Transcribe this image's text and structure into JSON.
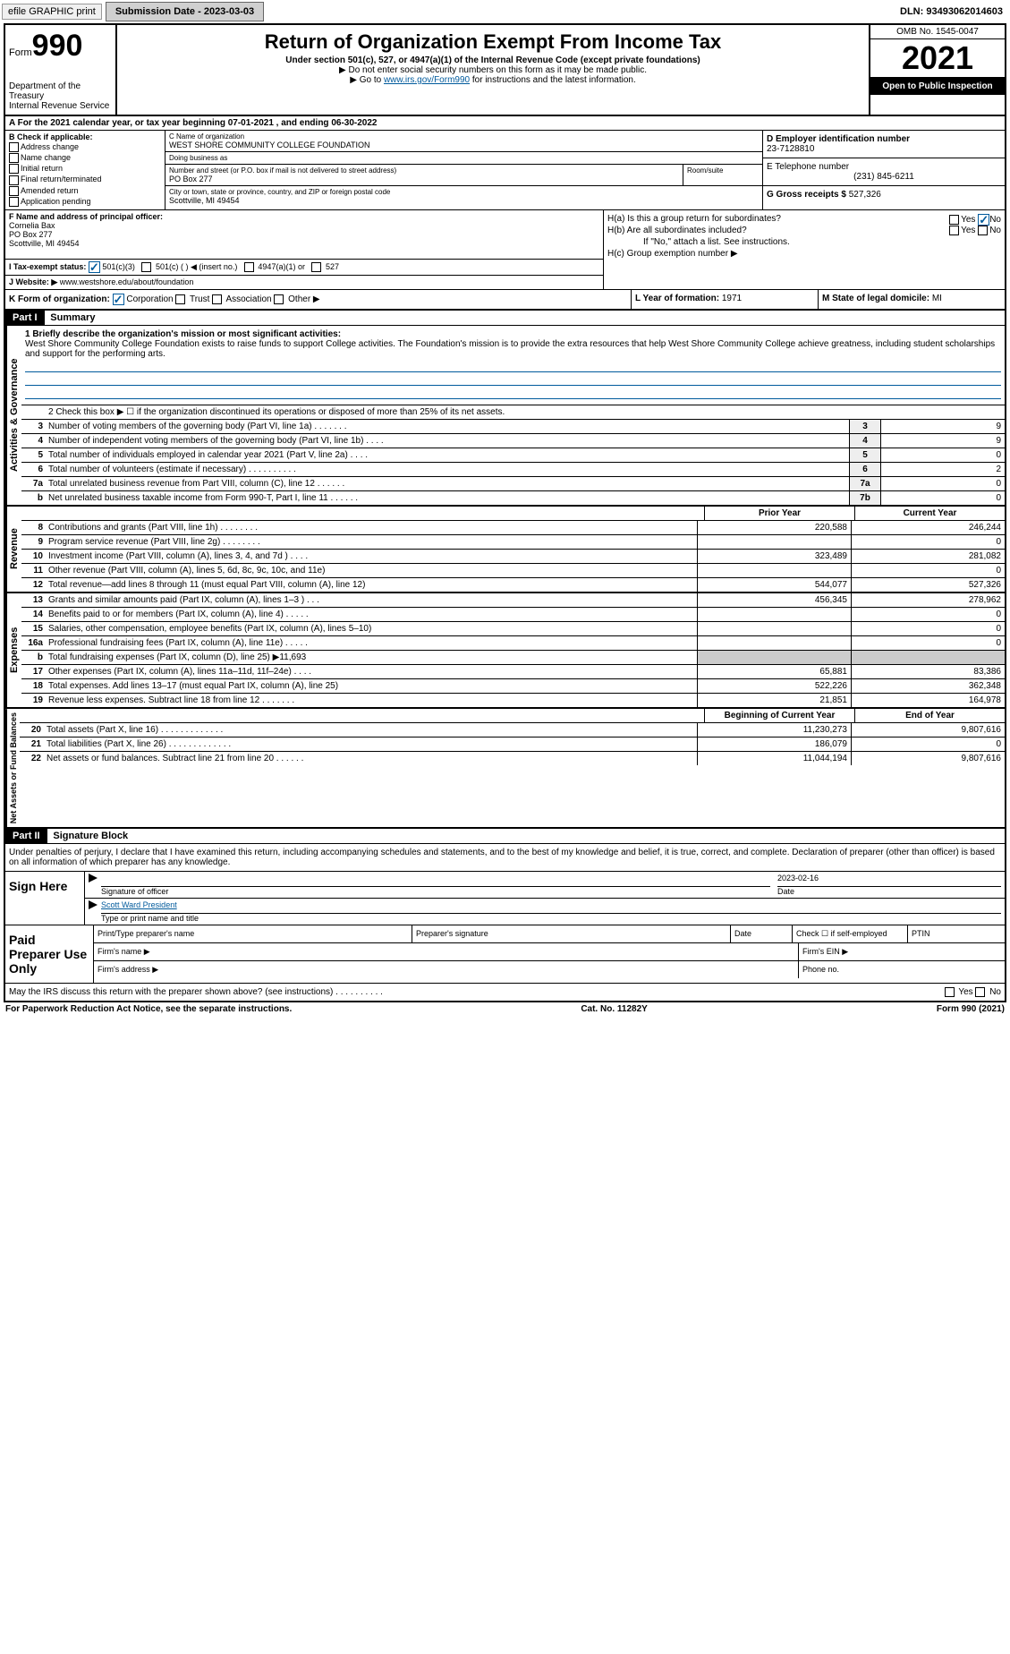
{
  "top_bar": {
    "efile": "efile GRAPHIC print",
    "submission_label": "Submission Date - 2023-03-03",
    "dln": "DLN: 93493062014603"
  },
  "header": {
    "form_label": "Form",
    "form_number": "990",
    "dept": "Department of the Treasury",
    "irs": "Internal Revenue Service",
    "title": "Return of Organization Exempt From Income Tax",
    "subtitle": "Under section 501(c), 527, or 4947(a)(1) of the Internal Revenue Code (except private foundations)",
    "note1": "▶ Do not enter social security numbers on this form as it may be made public.",
    "note2_pre": "▶ Go to ",
    "note2_link": "www.irs.gov/Form990",
    "note2_post": " for instructions and the latest information.",
    "omb": "OMB No. 1545-0047",
    "year": "2021",
    "inspect": "Open to Public Inspection"
  },
  "line_a": "A For the 2021 calendar year, or tax year beginning 07-01-2021    , and ending 06-30-2022",
  "section_b": {
    "label": "B Check if applicable:",
    "items": [
      "Address change",
      "Name change",
      "Initial return",
      "Final return/terminated",
      "Amended return",
      "Application pending"
    ]
  },
  "section_c": {
    "name_label": "C Name of organization",
    "name": "WEST SHORE COMMUNITY COLLEGE FOUNDATION",
    "dba_label": "Doing business as",
    "dba": "",
    "street_label": "Number and street (or P.O. box if mail is not delivered to street address)",
    "street": "PO Box 277",
    "room_label": "Room/suite",
    "city_label": "City or town, state or province, country, and ZIP or foreign postal code",
    "city": "Scottville, MI  49454"
  },
  "section_d": {
    "label": "D Employer identification number",
    "value": "23-7128810"
  },
  "section_e": {
    "label": "E Telephone number",
    "value": "(231) 845-6211"
  },
  "section_g": {
    "label": "G Gross receipts $",
    "value": "527,326"
  },
  "section_f": {
    "label": "F Name and address of principal officer:",
    "name": "Cornelia Bax",
    "addr1": "PO Box 277",
    "addr2": "Scottville, MI  49454"
  },
  "section_h": {
    "ha": "H(a)  Is this a group return for subordinates?",
    "hb": "H(b)  Are all subordinates included?",
    "hb_note": "If \"No,\" attach a list. See instructions.",
    "hc": "H(c)  Group exemption number ▶",
    "yes": "Yes",
    "no": "No"
  },
  "section_i": {
    "label": "I   Tax-exempt status:",
    "opts": [
      "501(c)(3)",
      "501(c) (   ) ◀ (insert no.)",
      "4947(a)(1) or",
      "527"
    ]
  },
  "section_j": {
    "label": "J   Website: ▶",
    "value": "www.westshore.edu/about/foundation"
  },
  "section_k": {
    "label": "K Form of organization:",
    "opts": [
      "Corporation",
      "Trust",
      "Association",
      "Other ▶"
    ]
  },
  "section_l": {
    "label": "L Year of formation:",
    "value": "1971"
  },
  "section_m": {
    "label": "M State of legal domicile:",
    "value": "MI"
  },
  "part1": {
    "header": "Part I",
    "title": "Summary",
    "line1_label": "1  Briefly describe the organization's mission or most significant activities:",
    "mission": "West Shore Community College Foundation exists to raise funds to support College activities. The Foundation's mission is to provide the extra resources that help West Shore Community College achieve greatness, including student scholarships and support for the performing arts.",
    "line2": "2   Check this box ▶ ☐  if the organization discontinued its operations or disposed of more than 25% of its net assets.",
    "governance_label": "Activities & Governance",
    "revenue_label": "Revenue",
    "expenses_label": "Expenses",
    "netassets_label": "Net Assets or Fund Balances",
    "prior_year": "Prior Year",
    "current_year": "Current Year",
    "begin_year": "Beginning of Current Year",
    "end_year": "End of Year",
    "rows_gov": [
      {
        "n": "3",
        "d": "Number of voting members of the governing body (Part VI, line 1a)   .    .    .    .    .    .    .",
        "b": "3",
        "v": "9"
      },
      {
        "n": "4",
        "d": "Number of independent voting members of the governing body (Part VI, line 1b)   .    .    .    .",
        "b": "4",
        "v": "9"
      },
      {
        "n": "5",
        "d": "Total number of individuals employed in calendar year 2021 (Part V, line 2a)   .    .    .    .",
        "b": "5",
        "v": "0"
      },
      {
        "n": "6",
        "d": "Total number of volunteers (estimate if necessary)   .    .    .    .    .    .    .    .    .    .",
        "b": "6",
        "v": "2"
      },
      {
        "n": "7a",
        "d": "Total unrelated business revenue from Part VIII, column (C), line 12   .    .    .    .    .    .",
        "b": "7a",
        "v": "0"
      },
      {
        "n": "b",
        "d": "Net unrelated business taxable income from Form 990-T, Part I, line 11   .    .    .    .    .    .",
        "b": "7b",
        "v": "0"
      }
    ],
    "rows_rev": [
      {
        "n": "8",
        "d": "Contributions and grants (Part VIII, line 1h)   .    .    .    .    .    .    .    .",
        "p": "220,588",
        "c": "246,244"
      },
      {
        "n": "9",
        "d": "Program service revenue (Part VIII, line 2g)   .    .    .    .    .    .    .    .",
        "p": "",
        "c": "0"
      },
      {
        "n": "10",
        "d": "Investment income (Part VIII, column (A), lines 3, 4, and 7d )   .    .    .    .",
        "p": "323,489",
        "c": "281,082"
      },
      {
        "n": "11",
        "d": "Other revenue (Part VIII, column (A), lines 5, 6d, 8c, 9c, 10c, and 11e)",
        "p": "",
        "c": "0"
      },
      {
        "n": "12",
        "d": "Total revenue—add lines 8 through 11 (must equal Part VIII, column (A), line 12)",
        "p": "544,077",
        "c": "527,326"
      }
    ],
    "rows_exp": [
      {
        "n": "13",
        "d": "Grants and similar amounts paid (Part IX, column (A), lines 1–3 )   .    .    .",
        "p": "456,345",
        "c": "278,962"
      },
      {
        "n": "14",
        "d": "Benefits paid to or for members (Part IX, column (A), line 4)   .    .    .    .    .",
        "p": "",
        "c": "0"
      },
      {
        "n": "15",
        "d": "Salaries, other compensation, employee benefits (Part IX, column (A), lines 5–10)",
        "p": "",
        "c": "0"
      },
      {
        "n": "16a",
        "d": "Professional fundraising fees (Part IX, column (A), line 11e)   .    .    .    .    .",
        "p": "",
        "c": "0"
      },
      {
        "n": "b",
        "d": "Total fundraising expenses (Part IX, column (D), line 25) ▶11,693",
        "p": "shaded",
        "c": "shaded"
      },
      {
        "n": "17",
        "d": "Other expenses (Part IX, column (A), lines 11a–11d, 11f–24e)   .    .    .    .",
        "p": "65,881",
        "c": "83,386"
      },
      {
        "n": "18",
        "d": "Total expenses. Add lines 13–17 (must equal Part IX, column (A), line 25)",
        "p": "522,226",
        "c": "362,348"
      },
      {
        "n": "19",
        "d": "Revenue less expenses. Subtract line 18 from line 12   .    .    .    .    .    .    .",
        "p": "21,851",
        "c": "164,978"
      }
    ],
    "rows_net": [
      {
        "n": "20",
        "d": "Total assets (Part X, line 16)   .    .    .    .    .    .    .    .    .    .    .    .    .",
        "p": "11,230,273",
        "c": "9,807,616"
      },
      {
        "n": "21",
        "d": "Total liabilities (Part X, line 26)   .    .    .    .    .    .    .    .    .    .    .    .    .",
        "p": "186,079",
        "c": "0"
      },
      {
        "n": "22",
        "d": "Net assets or fund balances. Subtract line 21 from line 20   .    .    .    .    .    .",
        "p": "11,044,194",
        "c": "9,807,616"
      }
    ]
  },
  "part2": {
    "header": "Part II",
    "title": "Signature Block",
    "declaration": "Under penalties of perjury, I declare that I have examined this return, including accompanying schedules and statements, and to the best of my knowledge and belief, it is true, correct, and complete. Declaration of preparer (other than officer) is based on all information of which preparer has any knowledge.",
    "sign_here": "Sign Here",
    "sig_officer": "Signature of officer",
    "sig_date_val": "2023-02-16",
    "sig_date": "Date",
    "officer_name": "Scott Ward President",
    "type_name": "Type or print name and title",
    "paid_prep": "Paid Preparer Use Only",
    "prep_name": "Print/Type preparer's name",
    "prep_sig": "Preparer's signature",
    "prep_date": "Date",
    "prep_check": "Check ☐ if self-employed",
    "ptin": "PTIN",
    "firm_name": "Firm's name    ▶",
    "firm_ein": "Firm's EIN ▶",
    "firm_addr": "Firm's address ▶",
    "phone": "Phone no.",
    "may_irs": "May the IRS discuss this return with the preparer shown above? (see instructions)   .    .    .    .    .    .    .    .    .    .",
    "yes": "Yes",
    "no": "No"
  },
  "footer": {
    "left": "For Paperwork Reduction Act Notice, see the separate instructions.",
    "mid": "Cat. No. 11282Y",
    "right": "Form 990 (2021)"
  }
}
